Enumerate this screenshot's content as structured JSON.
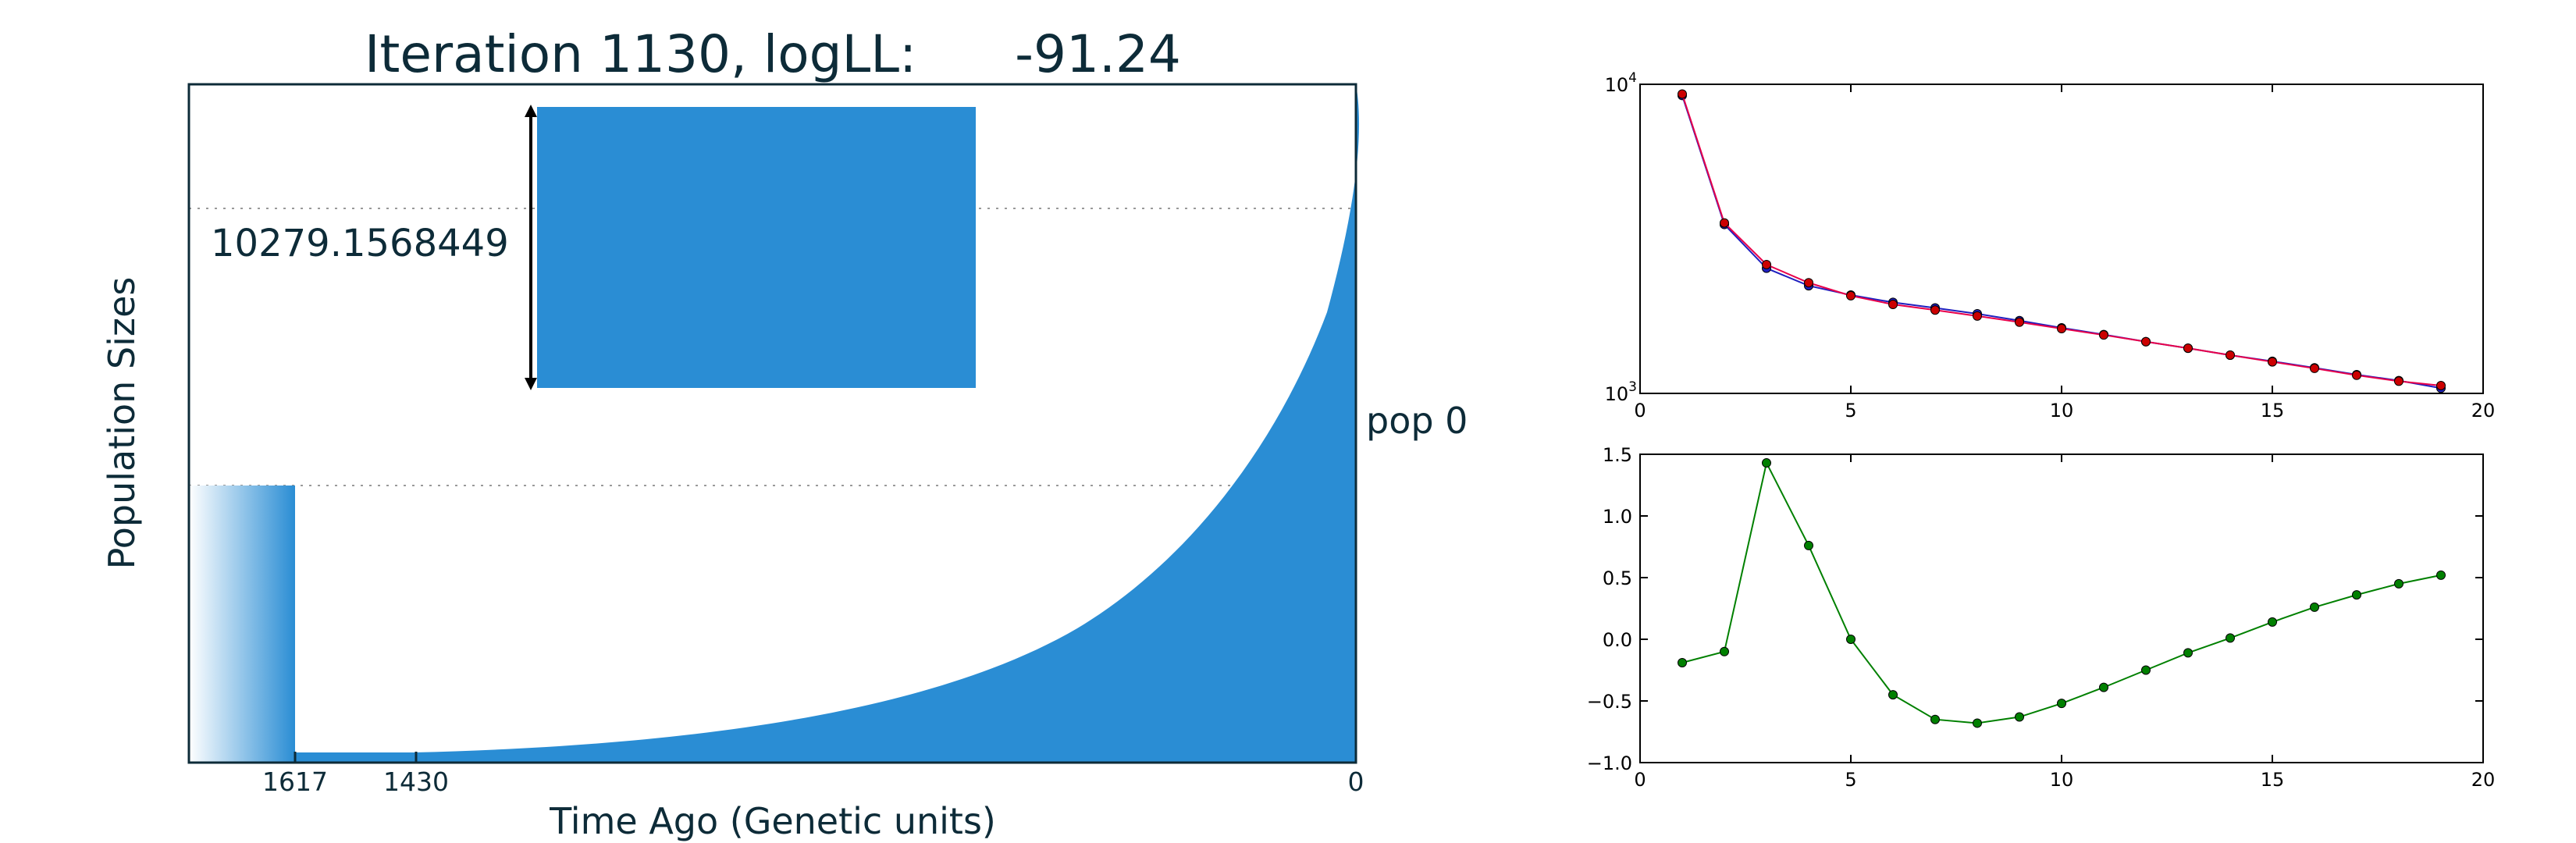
{
  "colors": {
    "fill": "#2a8dd4",
    "text": "#0d2b38",
    "blue_series": "#1f1fbf",
    "red_series": "#e8004a",
    "red_marker": "#cc0000",
    "green_series": "#008000"
  },
  "chart_data": [
    {
      "type": "area",
      "title": "Iteration 1130, logLL:      -91.24",
      "xlabel": "Time Ago (Genetic units)",
      "ylabel": "Population Sizes",
      "x_tick_labels": [
        "1617",
        "1430",
        "0"
      ],
      "population_label": "pop 0",
      "scale_bar_label": "10279.1568449",
      "grid": "dotted horizontal",
      "legend": "none"
    },
    {
      "type": "line",
      "yscale": "log",
      "xlim": [
        0,
        20
      ],
      "ylim": [
        1000,
        10000
      ],
      "x_ticks": [
        "0",
        "5",
        "10",
        "15",
        "20"
      ],
      "y_ticks": [
        {
          "base": "10",
          "exp": "4"
        },
        {
          "base": "10",
          "exp": "3"
        }
      ],
      "x": [
        1,
        2,
        3,
        4,
        5,
        6,
        7,
        8,
        9,
        10,
        11,
        12,
        13,
        14,
        15,
        16,
        17,
        18,
        19
      ],
      "series": [
        {
          "color": "blue",
          "values": [
            9200,
            3520,
            2540,
            2230,
            2080,
            1970,
            1890,
            1810,
            1720,
            1630,
            1550,
            1470,
            1400,
            1330,
            1270,
            1210,
            1150,
            1100,
            1040
          ]
        },
        {
          "color": "red",
          "values": [
            9300,
            3560,
            2610,
            2280,
            2070,
            1940,
            1860,
            1780,
            1700,
            1620,
            1545,
            1470,
            1400,
            1330,
            1265,
            1205,
            1145,
            1095,
            1060
          ]
        }
      ]
    },
    {
      "type": "line",
      "xlim": [
        0,
        20
      ],
      "ylim": [
        -1.0,
        1.5
      ],
      "x_ticks": [
        "0",
        "5",
        "10",
        "15",
        "20"
      ],
      "y_ticks": [
        "1.5",
        "1.0",
        "0.5",
        "0.0",
        "−0.5",
        "−1.0"
      ],
      "x": [
        1,
        2,
        3,
        4,
        5,
        6,
        7,
        8,
        9,
        10,
        11,
        12,
        13,
        14,
        15,
        16,
        17,
        18,
        19
      ],
      "series": [
        {
          "color": "green",
          "values": [
            -0.19,
            -0.1,
            1.43,
            0.76,
            0.0,
            -0.45,
            -0.65,
            -0.68,
            -0.63,
            -0.52,
            -0.39,
            -0.25,
            -0.11,
            0.01,
            0.14,
            0.26,
            0.36,
            0.45,
            0.52
          ]
        }
      ]
    }
  ]
}
